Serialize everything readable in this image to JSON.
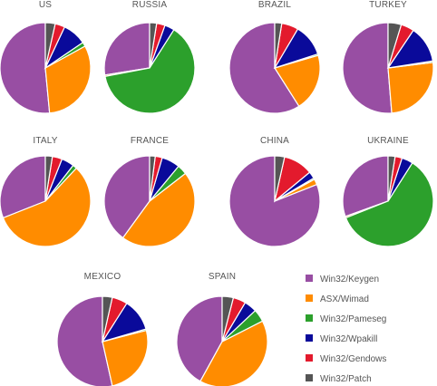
{
  "chart_data": {
    "type": "pie",
    "legend_position": "bottom-right",
    "series": [
      {
        "name": "Win32/Keygen",
        "color": "#984ea3"
      },
      {
        "name": "ASX/Wimad",
        "color": "#ff8c00"
      },
      {
        "name": "Win32/Pameseg",
        "color": "#2ca02c"
      },
      {
        "name": "Win32/Wpakill",
        "color": "#0a0a9a"
      },
      {
        "name": "Win32/Gendows",
        "color": "#e31a2d"
      },
      {
        "name": "Win32/Patch",
        "color": "#555555"
      }
    ],
    "pies": [
      {
        "title": "US",
        "values": [
          51.5,
          31.5,
          1.5,
          8.5,
          3.5,
          3.5
        ]
      },
      {
        "title": "RUSSIA",
        "values": [
          27.5,
          0.5,
          63.0,
          3.5,
          3.0,
          2.5
        ]
      },
      {
        "title": "BRAZIL",
        "values": [
          59.0,
          20.5,
          0.5,
          11.5,
          6.0,
          2.5
        ]
      },
      {
        "title": "TURKEY",
        "values": [
          49.0,
          24.5,
          0.5,
          12.5,
          4.5,
          4.5
        ]
      },
      {
        "title": "ITALY",
        "values": [
          31.0,
          57.0,
          1.5,
          4.5,
          3.5,
          2.5
        ]
      },
      {
        "title": "FRANCE",
        "values": [
          40.0,
          45.5,
          3.5,
          6.5,
          2.5,
          2.0
        ]
      },
      {
        "title": "CHINA",
        "values": [
          81.0,
          2.0,
          0.5,
          2.5,
          10.5,
          3.5
        ]
      },
      {
        "title": "UKRAINE",
        "values": [
          30.5,
          0.5,
          60.0,
          4.0,
          2.5,
          2.5
        ]
      },
      {
        "title": "MEXICO",
        "values": [
          53.5,
          25.5,
          0.5,
          11.5,
          5.5,
          3.5
        ]
      },
      {
        "title": "SPAIN",
        "values": [
          42.0,
          40.5,
          4.5,
          4.5,
          4.5,
          4.0
        ]
      }
    ]
  }
}
